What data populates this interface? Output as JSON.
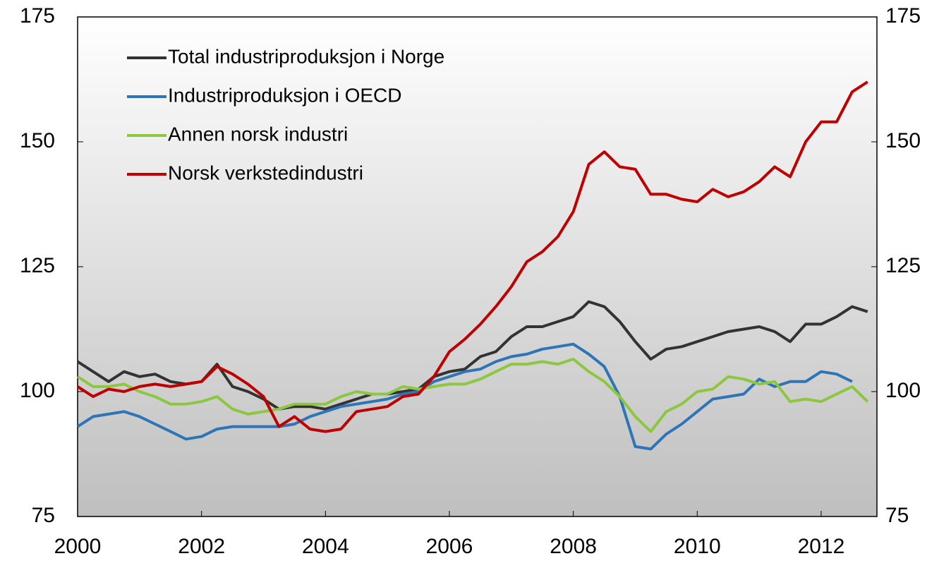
{
  "chart_data": {
    "type": "line",
    "x": [
      2000,
      2000.25,
      2000.5,
      2000.75,
      2001,
      2001.25,
      2001.5,
      2001.75,
      2002,
      2002.25,
      2002.5,
      2002.75,
      2003,
      2003.25,
      2003.5,
      2003.75,
      2004,
      2004.25,
      2004.5,
      2004.75,
      2005,
      2005.25,
      2005.5,
      2005.75,
      2006,
      2006.25,
      2006.5,
      2006.75,
      2007,
      2007.25,
      2007.5,
      2007.75,
      2008,
      2008.25,
      2008.5,
      2008.75,
      2009,
      2009.25,
      2009.5,
      2009.75,
      2010,
      2010.25,
      2010.5,
      2010.75,
      2011,
      2011.25,
      2011.5,
      2011.75,
      2012,
      2012.25,
      2012.5,
      2012.75
    ],
    "series": [
      {
        "name": "Total industriproduksjon i Norge",
        "color": "#333333",
        "values": [
          106,
          104,
          102,
          104,
          103,
          103.5,
          102,
          101.5,
          102,
          105.5,
          101,
          100,
          98.5,
          96.5,
          97,
          97,
          96.5,
          97.5,
          98.5,
          99.5,
          99.5,
          100,
          100.5,
          103,
          104,
          104.5,
          107,
          108,
          111,
          113,
          113,
          114,
          115,
          118,
          117,
          114,
          110,
          106.5,
          108.5,
          109,
          110,
          111,
          112,
          112.5,
          113,
          112,
          110,
          113.5,
          113.5,
          115,
          117,
          116
        ]
      },
      {
        "name": "Industriproduksjon i OECD",
        "color": "#2e75b6",
        "values": [
          93,
          95,
          95.5,
          96,
          95,
          93.5,
          92,
          90.5,
          91,
          92.5,
          93,
          93,
          93,
          93,
          93.5,
          95,
          96,
          97,
          97.5,
          98,
          98.5,
          99.5,
          100,
          102,
          103,
          104,
          104.5,
          106,
          107,
          107.5,
          108.5,
          109,
          109.5,
          107.5,
          105,
          99,
          89,
          88.5,
          91.5,
          93.5,
          96,
          98.5,
          99,
          99.5,
          102.5,
          101,
          102,
          102,
          104,
          103.5,
          102,
          null
        ]
      },
      {
        "name": "Annen norsk industri",
        "color": "#8dc63f",
        "values": [
          103,
          101,
          101,
          101.5,
          100,
          99,
          97.5,
          97.5,
          98,
          99,
          96.5,
          95.5,
          96,
          96.5,
          97.5,
          97.5,
          97.5,
          99,
          100,
          99.5,
          99.5,
          101,
          100.5,
          101,
          101.5,
          101.5,
          102.5,
          104,
          105.5,
          105.5,
          106,
          105.5,
          106.5,
          104,
          102,
          99,
          95,
          92,
          96,
          97.5,
          100,
          100.5,
          103,
          102.5,
          101.5,
          102,
          98,
          98.5,
          98,
          99.5,
          101,
          98
        ]
      },
      {
        "name": "Norsk verkstedindustri",
        "color": "#c00000",
        "values": [
          101,
          99,
          100.5,
          100,
          101,
          101.5,
          101,
          101.5,
          102,
          105,
          103.5,
          101.5,
          99,
          93,
          95,
          92.5,
          92,
          92.5,
          96,
          96.5,
          97,
          99,
          99.5,
          103,
          108,
          110.5,
          113.5,
          117,
          121,
          126,
          128,
          131,
          136,
          145.5,
          148,
          145,
          144.5,
          139.5,
          139.5,
          138.5,
          138,
          140.5,
          139,
          140,
          142,
          145,
          143,
          150,
          154,
          154,
          160,
          162
        ]
      }
    ],
    "xlim": [
      2000,
      2012.9
    ],
    "xticks": [
      2000,
      2002,
      2004,
      2006,
      2008,
      2010,
      2012
    ],
    "ylim": [
      75,
      175
    ],
    "yticks": [
      75,
      100,
      125,
      150,
      175
    ],
    "y2lim": [
      75,
      175
    ],
    "y2ticks": [
      75,
      100,
      125,
      150,
      175
    ],
    "legend": "upper left"
  }
}
